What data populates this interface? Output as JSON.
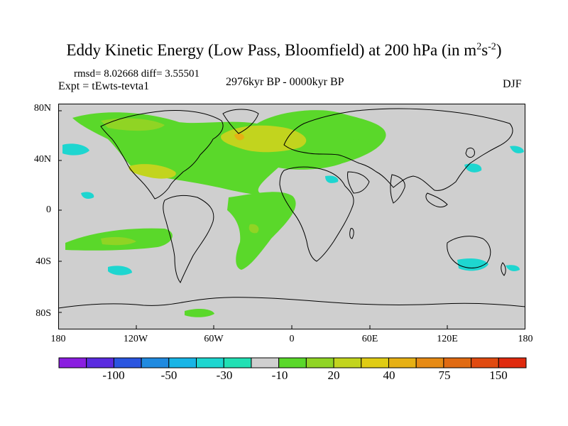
{
  "title": {
    "main": "Eddy Kinetic Energy (Low Pass, Bloomfield) at 200 hPa (in m",
    "sup1": "2",
    "mid": "s",
    "sup2": "-2",
    "end": ")"
  },
  "stats": "rmsd= 8.02668 diff= 3.55501",
  "experiment": "Expt = tEwts-tevta1",
  "period": "2976kyr BP - 0000kyr BP",
  "season": "DJF",
  "map": {
    "projection": "cylindrical equidistant",
    "lon_range": [
      -180,
      180
    ],
    "lat_range": [
      -90,
      90
    ],
    "background_color": "#cfcfcf",
    "y_tick_labels": [
      "80N",
      "40N",
      "0",
      "40S",
      "80S"
    ],
    "x_tick_labels": [
      "180",
      "120W",
      "60W",
      "0",
      "60E",
      "120E",
      "180"
    ]
  },
  "colorbar": {
    "colors": [
      "#8a1ee0",
      "#5a2be0",
      "#2a55e0",
      "#1f8ae0",
      "#18b5e6",
      "#1ed6d0",
      "#22e0b4",
      "#cfcfcf",
      "#5ad82a",
      "#90d424",
      "#c2d41e",
      "#e0cc14",
      "#e6b014",
      "#e68a14",
      "#e06a12",
      "#e04a10",
      "#e02a0e"
    ],
    "labels": [
      "-100",
      "-50",
      "-30",
      "-10",
      "20",
      "40",
      "75",
      "150"
    ]
  }
}
